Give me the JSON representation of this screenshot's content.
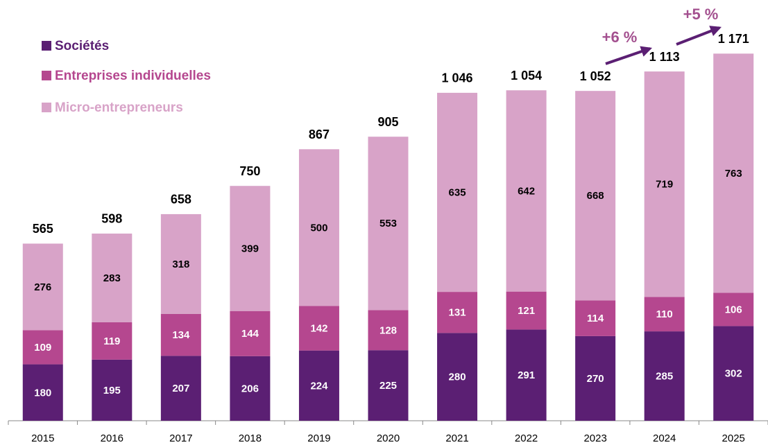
{
  "chart_data": {
    "type": "stacked_bar",
    "categories": [
      "2015",
      "2016",
      "2017",
      "2018",
      "2019",
      "2020",
      "2021",
      "2022",
      "2023",
      "2024",
      "2025"
    ],
    "series": [
      {
        "name": "Sociétés",
        "color": "#5b1f73",
        "values": [
          180,
          195,
          207,
          206,
          224,
          225,
          280,
          291,
          270,
          285,
          302
        ]
      },
      {
        "name": "Entreprises individuelles",
        "color": "#b5478f",
        "values": [
          109,
          119,
          134,
          144,
          142,
          128,
          131,
          121,
          114,
          110,
          106
        ]
      },
      {
        "name": "Micro-entrepreneurs",
        "color": "#d8a3c8",
        "values": [
          276,
          283,
          318,
          399,
          500,
          553,
          635,
          642,
          668,
          719,
          763
        ]
      }
    ],
    "totals": {
      "values": [
        565,
        598,
        658,
        750,
        867,
        905,
        1046,
        1054,
        1052,
        1113,
        1171
      ],
      "value_labels": [
        "565",
        "598",
        "658",
        "750",
        "867",
        "905",
        "1 046",
        "1 054",
        "1 052",
        "1 113",
        "1 171"
      ]
    },
    "annotations": [
      "+6 %",
      "+5 %"
    ],
    "ylim": [
      0,
      1300
    ],
    "legend": "top-left"
  }
}
